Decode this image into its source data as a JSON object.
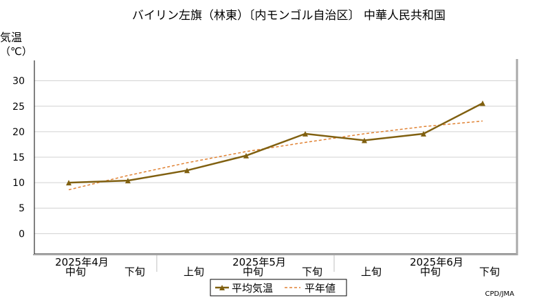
{
  "chart_data": {
    "type": "line",
    "title": "バイリン左旗（林東）〔内モンゴル自治区〕 中華人民共和国",
    "ylabel_line1": "気温",
    "ylabel_line2": "（℃）",
    "ylim": [
      -4,
      34
    ],
    "yticks": [
      0,
      5,
      10,
      15,
      20,
      25,
      30
    ],
    "grid": true,
    "x_periods": [
      "中旬",
      "下旬",
      "上旬",
      "中旬",
      "下旬",
      "上旬",
      "中旬",
      "下旬"
    ],
    "x_months": [
      {
        "label": "2025年4月",
        "at_index": 0
      },
      {
        "label": "2025年5月",
        "at_index": 3
      },
      {
        "label": "2025年6月",
        "at_index": 6
      }
    ],
    "series": [
      {
        "name": "平均気温",
        "style": "solid",
        "color": "#806010",
        "values": [
          10.0,
          10.4,
          12.4,
          15.3,
          19.6,
          18.3,
          19.6,
          25.6
        ]
      },
      {
        "name": "平年値",
        "style": "dashed",
        "color": "#e08030",
        "values": [
          8.6,
          11.4,
          13.9,
          16.1,
          17.9,
          19.6,
          21.0,
          22.1
        ]
      }
    ],
    "legend_position": "bottom-center",
    "credit": "CPD/JMA"
  }
}
